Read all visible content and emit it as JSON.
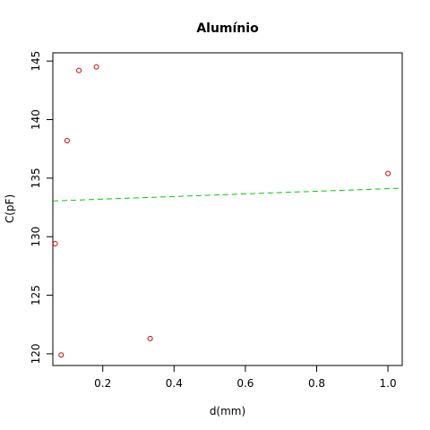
{
  "chart_data": {
    "type": "scatter",
    "title": "Alumínio",
    "xlabel": "d(mm)",
    "ylabel": "C(pF)",
    "xlim": [
      0.06,
      1.04
    ],
    "ylim": [
      119,
      145.7
    ],
    "xticks": [
      0.2,
      0.4,
      0.6,
      0.8,
      1.0
    ],
    "xtick_labels": [
      "0.2",
      "0.4",
      "0.6",
      "0.8",
      "1.0"
    ],
    "yticks": [
      120,
      125,
      130,
      135,
      140,
      145
    ],
    "ytick_labels": [
      "120",
      "125",
      "130",
      "135",
      "140",
      "145"
    ],
    "grid": false,
    "series": [
      {
        "type": "scatter",
        "color": "#cc0000",
        "marker": "open-circle",
        "points": [
          {
            "x": 0.0667,
            "y": 129.4
          },
          {
            "x": 0.0833,
            "y": 119.9
          },
          {
            "x": 0.1,
            "y": 138.2
          },
          {
            "x": 0.133,
            "y": 144.2
          },
          {
            "x": 0.182,
            "y": 144.5
          },
          {
            "x": 0.333,
            "y": 121.3
          },
          {
            "x": 1.0,
            "y": 135.4
          }
        ]
      },
      {
        "type": "line",
        "color": "#00cc00",
        "dash": "dashed",
        "points": [
          {
            "x": 0.06,
            "y": 133.05
          },
          {
            "x": 1.04,
            "y": 134.15
          }
        ]
      }
    ]
  }
}
